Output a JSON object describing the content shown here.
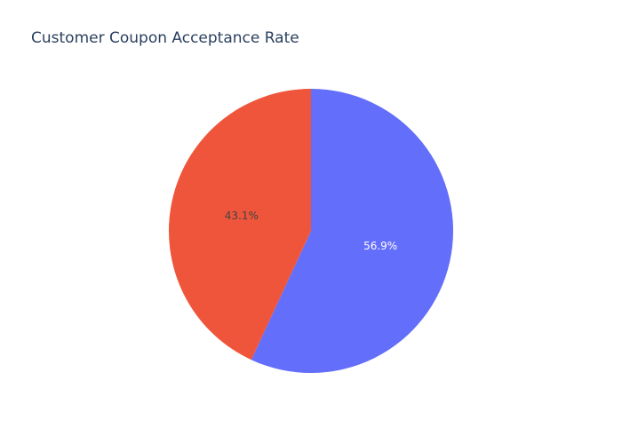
{
  "chart_data": {
    "type": "pie",
    "title": "Customer Coupon Acceptance Rate",
    "slices": [
      {
        "value": 56.9,
        "label": "56.9%",
        "color": "#636efa",
        "label_color": "#ffffff"
      },
      {
        "value": 43.1,
        "label": "43.1%",
        "color": "#ef553b",
        "label_color": "#444444"
      }
    ],
    "direction": "clockwise",
    "start": "top"
  }
}
